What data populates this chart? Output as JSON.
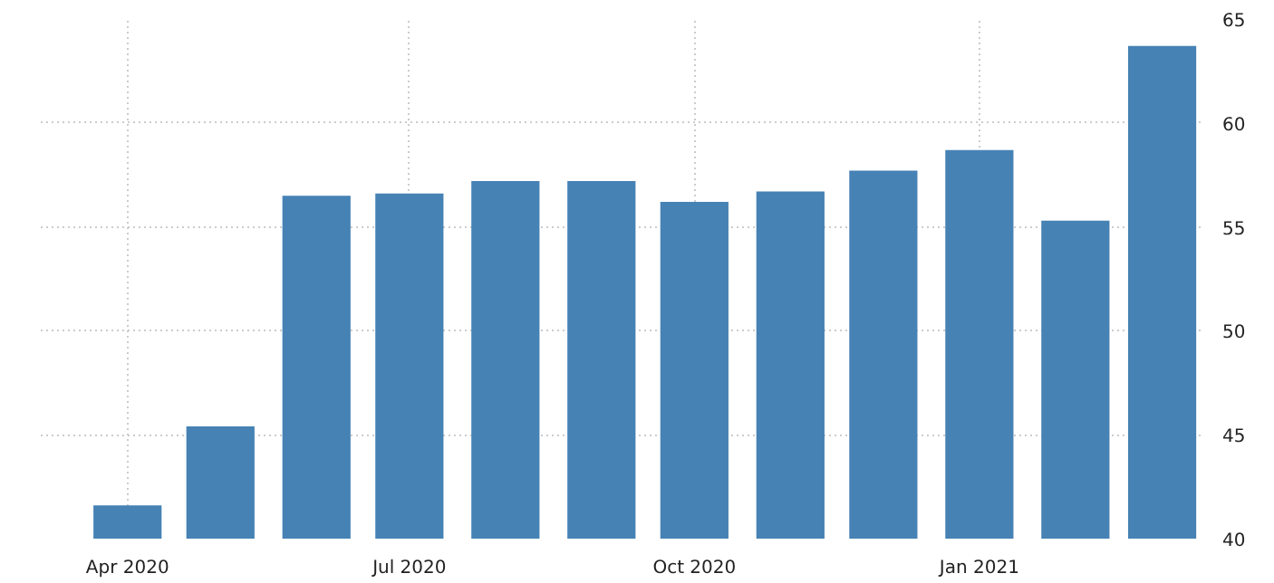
{
  "chart_data": {
    "type": "bar",
    "x": [
      "2020-04-01",
      "2020-05-01",
      "2020-06-01",
      "2020-07-01",
      "2020-08-01",
      "2020-09-01",
      "2020-10-01",
      "2020-11-01",
      "2020-12-01",
      "2021-01-01",
      "2021-02-01",
      "2021-03-01"
    ],
    "values": [
      41.6,
      45.4,
      56.5,
      56.6,
      57.2,
      57.2,
      56.2,
      56.7,
      57.7,
      58.7,
      55.3,
      63.7
    ],
    "color": "#4682b4",
    "xlim": [
      "2020-03-04",
      "2021-03-14"
    ],
    "xticks": [
      {
        "value": "2020-04-01",
        "label": "Apr 2020"
      },
      {
        "value": "2020-07-01",
        "label": "Jul 2020"
      },
      {
        "value": "2020-10-01",
        "label": "Oct 2020"
      },
      {
        "value": "2021-01-01",
        "label": "Jan 2021"
      }
    ],
    "ylim": [
      40,
      65
    ],
    "yticks": [
      40,
      45,
      50,
      55,
      60,
      65
    ],
    "grid": true
  }
}
